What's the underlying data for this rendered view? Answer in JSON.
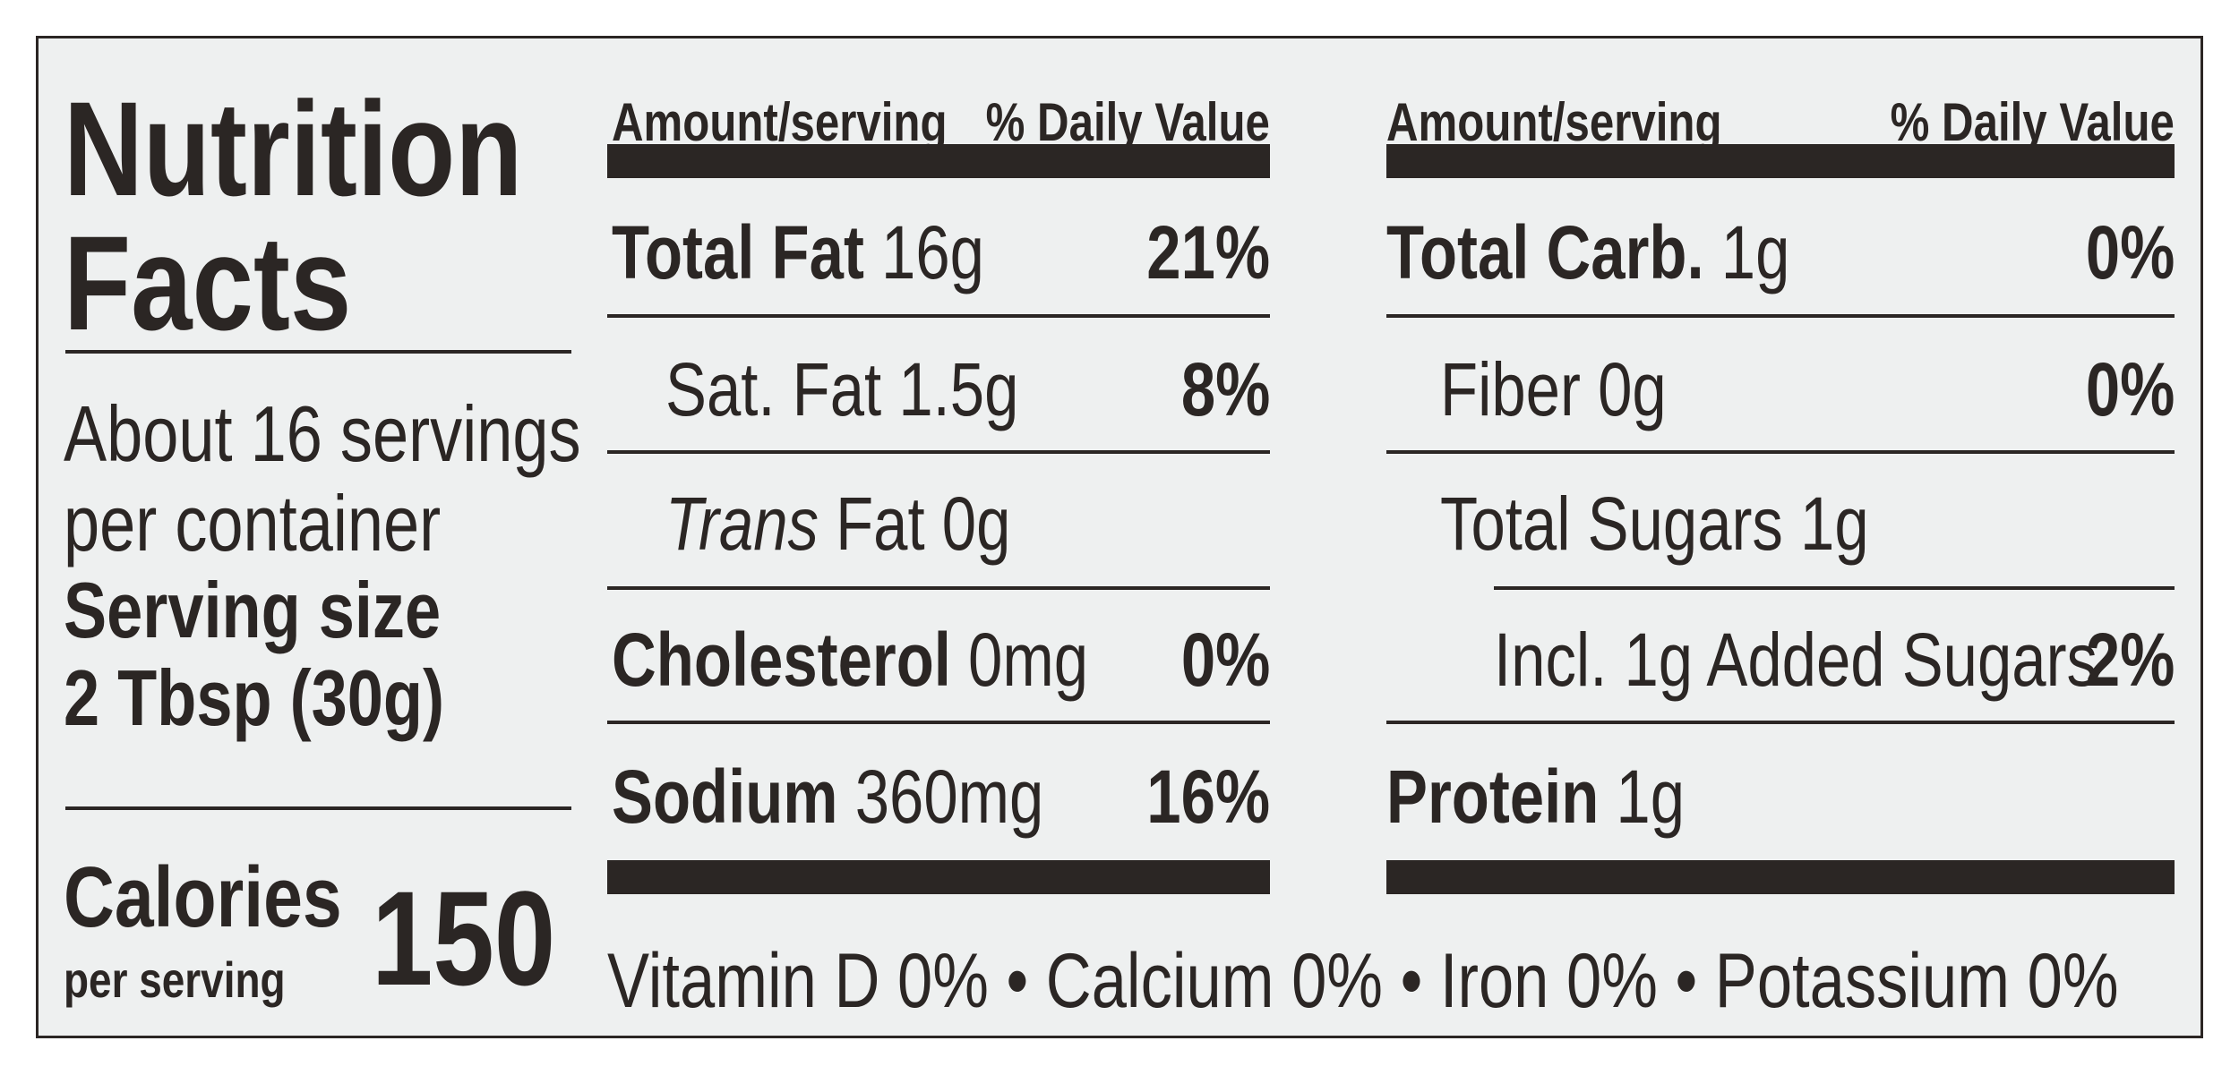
{
  "left": {
    "title_line1": "Nutrition",
    "title_line2": "Facts",
    "servings_line1": "About 16 servings",
    "servings_line2": "per container",
    "serving_size_label": "Serving size",
    "serving_size_value": "2 Tbsp (30g)",
    "calories_label": "Calories",
    "calories_sub": "per serving",
    "calories_value": "150"
  },
  "col1": {
    "header_amount": "Amount/serving",
    "header_dv": "% Daily Value",
    "rows": [
      {
        "name": "Total Fat",
        "amount": "16g",
        "dv": "21%"
      },
      {
        "name": "Sat. Fat",
        "amount": "1.5g",
        "dv": "8%"
      },
      {
        "name_italic": "Trans",
        "name": "Fat",
        "amount": "0g",
        "dv": ""
      },
      {
        "name": "Cholesterol",
        "amount": "0mg",
        "dv": "0%"
      },
      {
        "name": "Sodium",
        "amount": "360mg",
        "dv": "16%"
      }
    ]
  },
  "col2": {
    "header_amount": "Amount/serving",
    "header_dv": "% Daily Value",
    "rows": [
      {
        "name": "Total Carb.",
        "amount": "1g",
        "dv": "0%"
      },
      {
        "name": "Fiber",
        "amount": "0g",
        "dv": "0%"
      },
      {
        "name": "Total Sugars",
        "amount": "1g",
        "dv": ""
      },
      {
        "name": "Incl. 1g Added Sugars",
        "amount": "",
        "dv": "2%"
      },
      {
        "name": "Protein",
        "amount": "1g",
        "dv": ""
      }
    ]
  },
  "footer": {
    "text": "Vitamin D 0% • Calcium 0% • Iron 0% • Potassium 0%"
  }
}
